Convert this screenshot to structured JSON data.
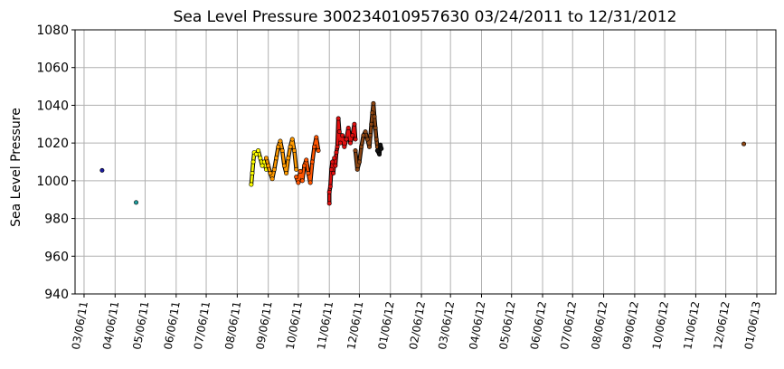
{
  "chart_data": {
    "type": "scatter",
    "title": "Sea Level Pressure 300234010957630  03/24/2011 to 12/31/2012",
    "ylabel": "Sea Level Pressure",
    "xlabel": "",
    "ylim": [
      940,
      1080
    ],
    "yticks": [
      940,
      960,
      980,
      1000,
      1020,
      1040,
      1060,
      1080
    ],
    "xlim": [
      "2011-02-25",
      "2013-01-25"
    ],
    "xtick_dates": [
      "2011-03-06",
      "2011-04-06",
      "2011-05-06",
      "2011-06-06",
      "2011-07-06",
      "2011-08-06",
      "2011-09-06",
      "2011-10-06",
      "2011-11-06",
      "2011-12-06",
      "2012-01-06",
      "2012-02-06",
      "2012-03-06",
      "2012-04-06",
      "2012-05-06",
      "2012-06-06",
      "2012-07-06",
      "2012-08-06",
      "2012-09-06",
      "2012-10-06",
      "2012-11-06",
      "2012-12-06",
      "2013-01-06"
    ],
    "xtick_labels": [
      "03/06/11",
      "04/06/11",
      "05/06/11",
      "06/06/11",
      "07/06/11",
      "08/06/11",
      "09/06/11",
      "10/06/11",
      "11/06/11",
      "12/06/11",
      "01/06/12",
      "02/06/12",
      "03/06/12",
      "04/06/12",
      "05/06/12",
      "06/06/12",
      "07/06/12",
      "08/06/12",
      "09/06/12",
      "10/06/12",
      "11/06/12",
      "12/06/12",
      "01/06/13"
    ],
    "grid": true,
    "colors": {
      "marker_edge": "#000000",
      "grid": "#b0b0b0"
    },
    "series": [
      {
        "color": "#1a1aa0",
        "points": [
          [
            "2011-03-24",
            1005.5
          ]
        ]
      },
      {
        "color": "#20a0a0",
        "points": [
          [
            "2011-04-27",
            988.5
          ]
        ]
      },
      {
        "color": "#ffff00",
        "points": [
          [
            "2011-08-20",
            998
          ],
          [
            "2011-08-21",
            1004
          ],
          [
            "2011-08-22",
            1010
          ],
          [
            "2011-08-23",
            1015
          ],
          [
            "2011-08-25",
            1014
          ],
          [
            "2011-08-27",
            1016
          ],
          [
            "2011-08-29",
            1012
          ],
          [
            "2011-08-31",
            1008
          ],
          [
            "2011-09-02",
            1010
          ],
          [
            "2011-09-04",
            1006
          ]
        ]
      },
      {
        "color": "#ff9a00",
        "points": [
          [
            "2011-09-04",
            1012
          ],
          [
            "2011-09-06",
            1008
          ],
          [
            "2011-09-08",
            1004
          ],
          [
            "2011-09-10",
            1001
          ],
          [
            "2011-09-12",
            1006
          ],
          [
            "2011-09-14",
            1012
          ],
          [
            "2011-09-16",
            1018
          ],
          [
            "2011-09-18",
            1021
          ],
          [
            "2011-09-20",
            1016
          ],
          [
            "2011-09-22",
            1008
          ],
          [
            "2011-09-24",
            1004
          ],
          [
            "2011-09-26",
            1012
          ],
          [
            "2011-09-28",
            1018
          ],
          [
            "2011-09-30",
            1022
          ],
          [
            "2011-10-02",
            1016
          ],
          [
            "2011-10-04",
            1006
          ]
        ]
      },
      {
        "color": "#ff5500",
        "points": [
          [
            "2011-10-04",
            1002
          ],
          [
            "2011-10-06",
            999
          ],
          [
            "2011-10-08",
            1005
          ],
          [
            "2011-10-10",
            1000
          ],
          [
            "2011-10-12",
            1008
          ],
          [
            "2011-10-14",
            1011
          ],
          [
            "2011-10-16",
            1004
          ],
          [
            "2011-10-18",
            999
          ],
          [
            "2011-10-20",
            1010
          ],
          [
            "2011-10-22",
            1018
          ],
          [
            "2011-10-24",
            1023
          ],
          [
            "2011-10-26",
            1016
          ]
        ]
      },
      {
        "color": "#e01010",
        "points": [
          [
            "2011-11-06",
            988
          ],
          [
            "2011-11-06",
            994
          ],
          [
            "2011-11-07",
            997
          ],
          [
            "2011-11-08",
            1006
          ],
          [
            "2011-11-09",
            1010
          ],
          [
            "2011-11-10",
            1004
          ],
          [
            "2011-11-11",
            1012
          ],
          [
            "2011-11-12",
            1008
          ],
          [
            "2011-11-13",
            1015
          ],
          [
            "2011-11-14",
            1018
          ],
          [
            "2011-11-15",
            1033
          ],
          [
            "2011-11-16",
            1026
          ],
          [
            "2011-11-17",
            1020
          ],
          [
            "2011-11-19",
            1024
          ],
          [
            "2011-11-21",
            1018
          ],
          [
            "2011-11-23",
            1022
          ],
          [
            "2011-11-25",
            1028
          ],
          [
            "2011-11-27",
            1020
          ],
          [
            "2011-11-29",
            1024
          ],
          [
            "2011-12-01",
            1030
          ],
          [
            "2011-12-02",
            1022
          ]
        ]
      },
      {
        "color": "#8b4513",
        "points": [
          [
            "2011-12-02",
            1016
          ],
          [
            "2011-12-04",
            1006
          ],
          [
            "2011-12-06",
            1010
          ],
          [
            "2011-12-08",
            1018
          ],
          [
            "2011-12-10",
            1024
          ],
          [
            "2011-12-12",
            1026
          ],
          [
            "2011-12-14",
            1022
          ],
          [
            "2011-12-16",
            1018
          ],
          [
            "2011-12-17",
            1024
          ],
          [
            "2011-12-18",
            1030
          ],
          [
            "2011-12-19",
            1036
          ],
          [
            "2011-12-20",
            1041
          ],
          [
            "2011-12-21",
            1034
          ],
          [
            "2011-12-22",
            1028
          ],
          [
            "2011-12-23",
            1022
          ],
          [
            "2011-12-24",
            1018
          ]
        ]
      },
      {
        "color": "#111111",
        "points": [
          [
            "2011-12-24",
            1016
          ],
          [
            "2011-12-26",
            1014
          ],
          [
            "2011-12-27",
            1019
          ],
          [
            "2011-12-28",
            1017
          ]
        ]
      },
      {
        "color": "#8b4513",
        "points": [
          [
            "2012-12-24",
            1019.5
          ]
        ]
      }
    ]
  }
}
